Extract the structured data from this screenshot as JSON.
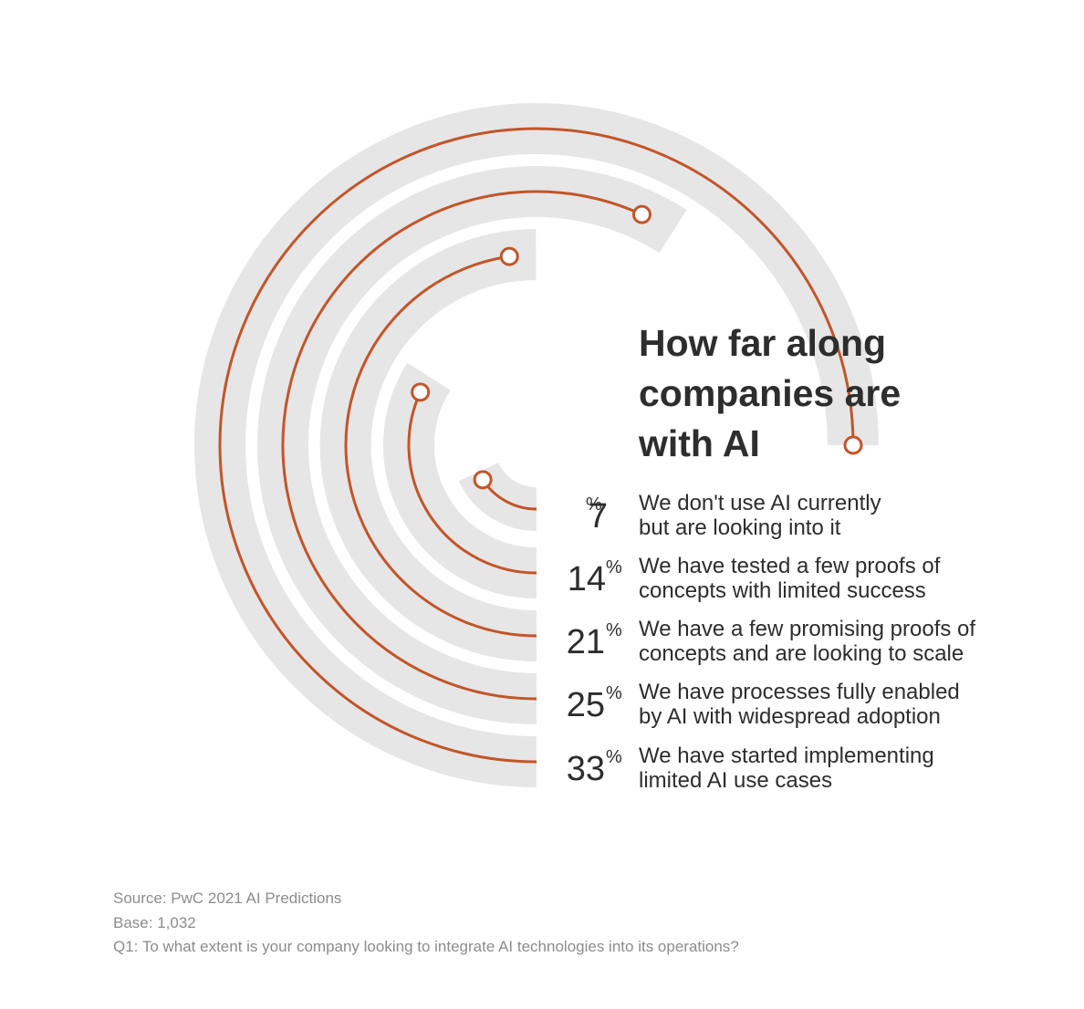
{
  "title": {
    "line1": "How far along",
    "line2": "companies are",
    "line3": "with AI"
  },
  "colors": {
    "track": "#e6e6e6",
    "arc": "#c2552a",
    "text": "#2d2d2d",
    "footnote": "#8c8c8c"
  },
  "chart_data": {
    "type": "radial-bar",
    "title": "How far along companies are with AI",
    "unit": "%",
    "series": [
      {
        "value": 7,
        "label": "7",
        "desc1": "We don't use AI currently",
        "desc2": "but are looking into it"
      },
      {
        "value": 14,
        "label": "14",
        "desc1": "We have tested a few proofs of",
        "desc2": "concepts with limited success"
      },
      {
        "value": 21,
        "label": "21",
        "desc1": "We have a few promising proofs of",
        "desc2": "concepts and are looking to scale"
      },
      {
        "value": 25,
        "label": "25",
        "desc1": "We have processes fully enabled",
        "desc2": "by AI with widespread adoption"
      },
      {
        "value": 33,
        "label": "33",
        "desc1": "We have started implementing",
        "desc2": "limited AI use cases"
      }
    ]
  },
  "footer": {
    "source": "Source: PwC 2021 AI Predictions",
    "base": "Base: 1,032",
    "question": "Q1: To what extent is your company looking to integrate AI technologies into its operations?"
  }
}
